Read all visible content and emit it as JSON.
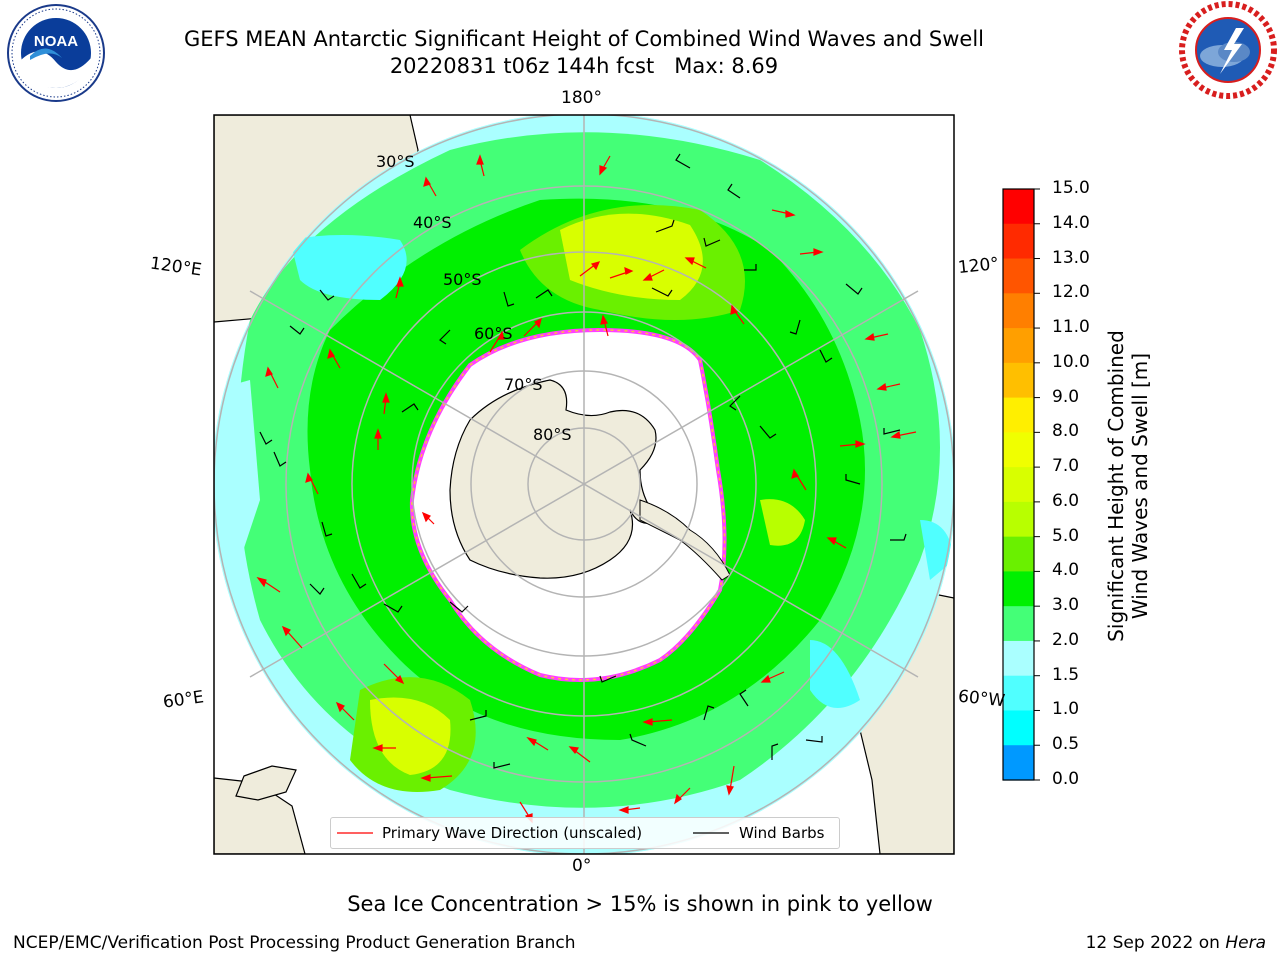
{
  "title": {
    "line1": "GEFS MEAN Antarctic Significant Height of Combined Wind Waves and Swell",
    "line2": "20220831 t06z 144h fcst   Max: 8.69"
  },
  "logos": {
    "left": {
      "name": "noaa-logo",
      "text": "NOAA",
      "ring_text": "NATIONAL OCEANIC AND ATMOSPHERIC ADMINISTRATION · U.S. DEPARTMENT OF COMMERCE"
    },
    "right": {
      "name": "nws-logo",
      "ring_text": "NATIONAL WEATHER SERVICE"
    }
  },
  "map": {
    "projection": "south-polar-stereographic",
    "lon_labels": {
      "top": "180°",
      "bottom": "0°",
      "left_upper": "120°E",
      "left_lower": "60°E",
      "right_upper": "120°",
      "right_lower": "60°W"
    },
    "lat_labels": [
      "30°S",
      "40°S",
      "50°S",
      "60°S",
      "70°S",
      "80°S"
    ],
    "legend": {
      "primary_wave": "Primary Wave Direction (unscaled)",
      "wind_barbs": "Wind Barbs"
    },
    "colors": {
      "land": "#efecdc",
      "ice": "#ffffff",
      "ice_edge": "#ff40ff",
      "wave_arrow": "#ff0000",
      "wind_barb": "#000000",
      "grid": "#b4b4b4"
    }
  },
  "colorbar": {
    "label_line1": "Significant Height of Combined",
    "label_line2": "Wind Waves and Swell [m]",
    "ticks": [
      "15.0",
      "14.0",
      "13.0",
      "12.0",
      "11.0",
      "10.0",
      "9.0",
      "8.0",
      "7.0",
      "6.0",
      "5.0",
      "4.0",
      "3.0",
      "2.0",
      "1.5",
      "1.0",
      "0.5",
      "0.0"
    ],
    "colors_top_to_bottom": [
      "#ff0000",
      "#ff2a00",
      "#ff5500",
      "#ff7f00",
      "#ff9f00",
      "#ffbf00",
      "#ffef00",
      "#f0ff00",
      "#d8ff00",
      "#b8ff00",
      "#6af000",
      "#00f000",
      "#44ff77",
      "#aaffff",
      "#50ffff",
      "#00ffff",
      "#0099ff",
      "#0066ff",
      "#0000ff"
    ]
  },
  "sea_ice_note": "Sea Ice Concentration > 15% is shown in pink to yellow",
  "footer": {
    "left": "NCEP/EMC/Verification Post Processing Product Generation Branch",
    "right_date": "12 Sep 2022 on ",
    "right_host": "Hera"
  }
}
